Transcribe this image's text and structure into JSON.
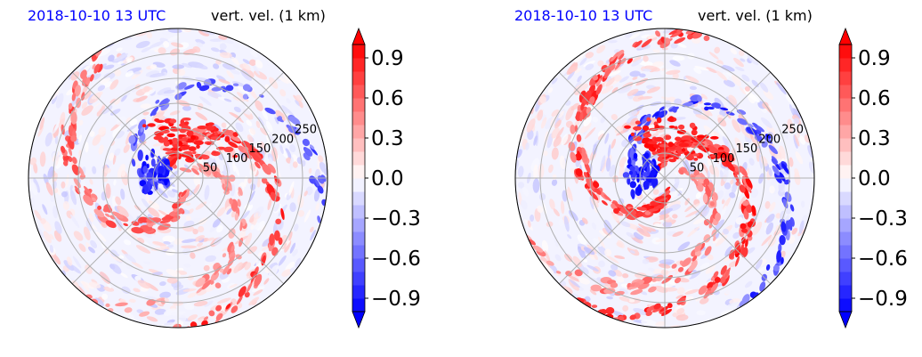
{
  "chart_data": [
    {
      "type": "heatmap",
      "projection": "polar",
      "time_label": "2018-10-10 13 UTC",
      "variable_label": "vert. vel. (1 km)",
      "radial_ticks": [
        "50",
        "100",
        "150",
        "200",
        "250"
      ],
      "radial_tick_values": [
        50,
        100,
        150,
        200,
        250
      ],
      "rlim": [
        0,
        300
      ],
      "grid": true,
      "colorbar": {
        "ticks": [
          "−0.9",
          "−0.6",
          "−0.3",
          "0.0",
          "0.3",
          "0.6",
          "0.9"
        ],
        "tick_values": [
          -0.9,
          -0.6,
          -0.3,
          0.0,
          0.3,
          0.6,
          0.9
        ],
        "range": [
          -1.0,
          1.0
        ],
        "extend": "both",
        "colormap": "bwr",
        "low_color": "#0000ff",
        "mid_color": "#ffffff",
        "high_color": "#ff0000"
      }
    },
    {
      "type": "heatmap",
      "projection": "polar",
      "time_label": "2018-10-10 13 UTC",
      "variable_label": "vert. vel. (1 km)",
      "radial_ticks": [
        "50",
        "100",
        "150",
        "200",
        "250"
      ],
      "radial_tick_values": [
        50,
        100,
        150,
        200,
        250
      ],
      "rlim": [
        0,
        300
      ],
      "grid": true,
      "colorbar": {
        "ticks": [
          "−0.9",
          "−0.6",
          "−0.3",
          "0.0",
          "0.3",
          "0.6",
          "0.9"
        ],
        "tick_values": [
          -0.9,
          -0.6,
          -0.3,
          0.0,
          0.3,
          0.6,
          0.9
        ],
        "range": [
          -1.0,
          1.0
        ],
        "extend": "both",
        "colormap": "bwr",
        "low_color": "#0000ff",
        "mid_color": "#ffffff",
        "high_color": "#ff0000"
      }
    }
  ]
}
